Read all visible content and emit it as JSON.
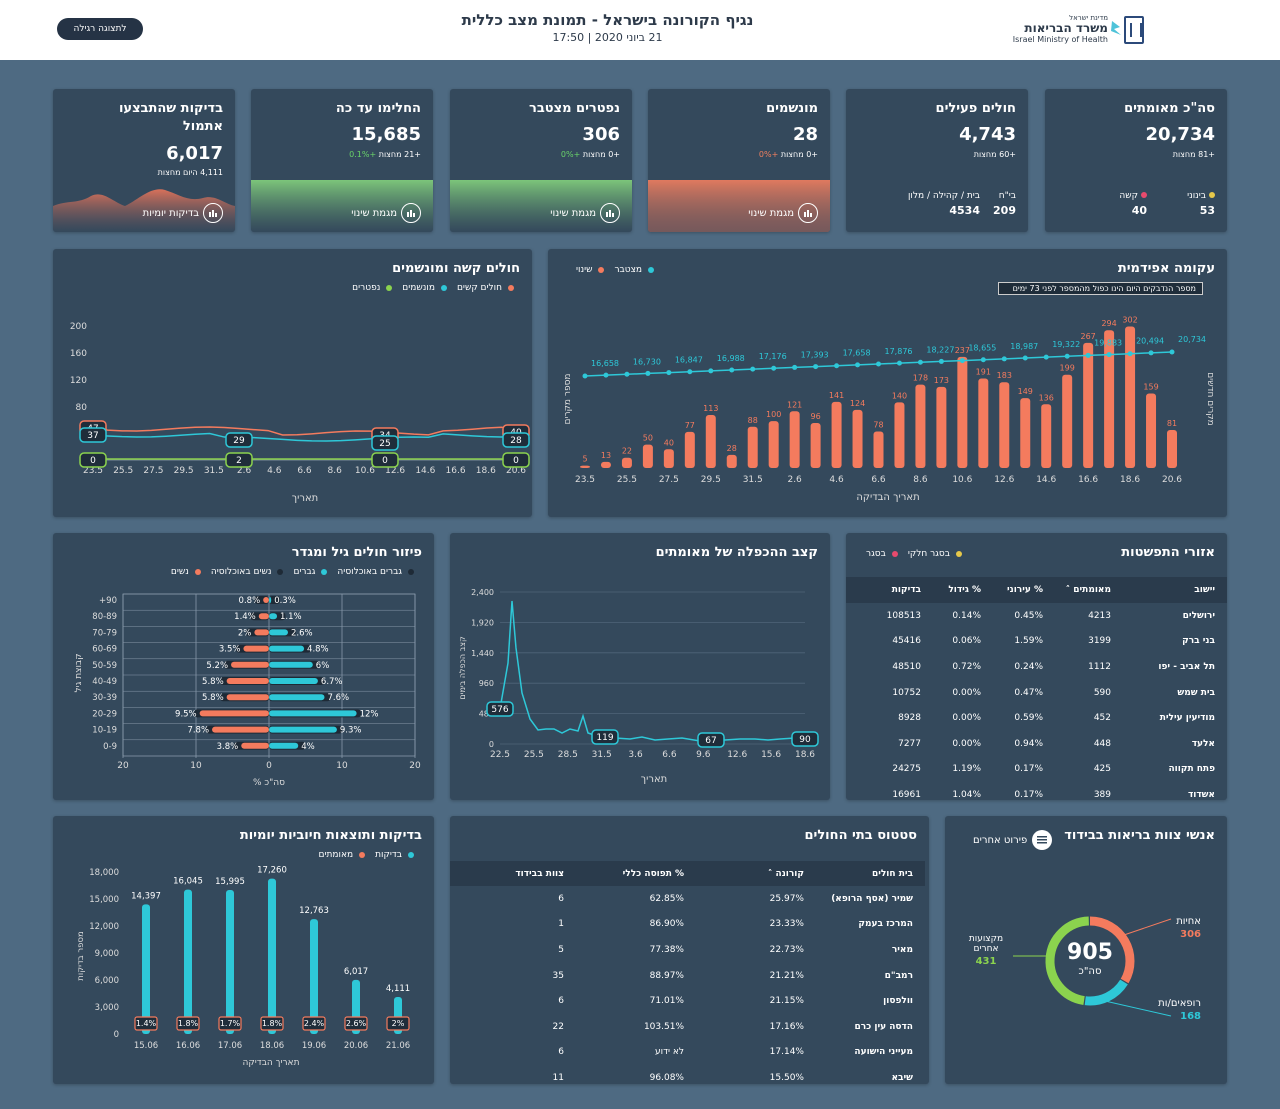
{
  "header": {
    "title": "נגיף הקורונה בישראל - תמונת מצב כללית",
    "subtitle": "21 ביוני 2020 | 17:50",
    "button": "לתצוגה רגילה",
    "logo_line1": "מדינת ישראל",
    "logo_line2": "משרד הבריאות",
    "logo_en": "Israel Ministry of Health"
  },
  "colors": {
    "orange": "#f47b5e",
    "cyan": "#2ec8d8",
    "green": "#8bd34e",
    "pink": "#e84a6d",
    "yellow": "#e6c84a",
    "card": "#34495c",
    "bg": "#4e6a82"
  },
  "kpis": {
    "confirmed": {
      "title": "סה\"כ מאומתים",
      "value": "20,734",
      "chg_label": "מחצות",
      "chg": "+81",
      "s1_label": "בינוני",
      "s1": "53",
      "s2_label": "קשה",
      "s2": "40"
    },
    "active": {
      "title": "חולים פעילים",
      "value": "4,743",
      "chg_label": "מחצות",
      "chg": "+60",
      "s1_label": "בי\"ח",
      "s1": "209",
      "s2_label": "בית / קהילה / מלון",
      "s2": "4534"
    },
    "ventilated": {
      "title": "מונשמים",
      "value": "28",
      "chg_label": "מחצות",
      "chg": "+0",
      "pct": "+0%",
      "btn": "מגמת שינוי"
    },
    "deceased": {
      "title": "נפטרים מצטבר",
      "value": "306",
      "chg_label": "מחצות",
      "chg": "+0",
      "pct": "+0%",
      "btn": "מגמת שינוי"
    },
    "recovered": {
      "title": "החלימו עד כה",
      "value": "15,685",
      "chg_label": "מחצות",
      "chg": "+21",
      "pct": "+0.1%",
      "btn": "מגמת שינוי"
    },
    "tests": {
      "title1": "בדיקות שהתבצעו",
      "title2": "אתמול",
      "value": "6,017",
      "chg_label": "היום מחצות",
      "chg": "4,111",
      "btn": "בדיקות יומיות"
    }
  },
  "epi": {
    "title": "עקומה אפידמית",
    "legend_change": "שינוי",
    "legend_cum": "מצטבר",
    "annotation": "מספר הנדבקים היום הינו כפול מהמספר לפני 73 ימים",
    "ylabel_left": "מספר מקרים",
    "ylabel_right": "מקרים חדשים",
    "xlabel": "תאריך הבדיקה",
    "chart_data": {
      "type": "bar",
      "x_ticks": [
        "23.5",
        "25.5",
        "27.5",
        "29.5",
        "31.5",
        "2.6",
        "4.6",
        "6.6",
        "8.6",
        "10.6",
        "12.6",
        "14.6",
        "16.6",
        "18.6",
        "20.6"
      ],
      "new_cases": [
        5,
        13,
        22,
        50,
        40,
        77,
        113,
        28,
        88,
        100,
        121,
        96,
        141,
        124,
        78,
        140,
        178,
        173,
        237,
        191,
        183,
        149,
        136,
        199,
        267,
        294,
        302,
        159,
        81
      ],
      "cumulative_labels": [
        "16,658",
        "16,730",
        "16,847",
        "16,988",
        "17,176",
        "17,393",
        "17,658",
        "17,876",
        "18,227",
        "18,655",
        "18,987",
        "19,322",
        "19,883",
        "20,494",
        "20,734"
      ]
    }
  },
  "severe": {
    "title": "חולים קשה ומונשמים",
    "legend": [
      "חולים קשים",
      "מונשמים",
      "נפטרים"
    ],
    "xlabel": "תאריך",
    "chart_data": {
      "type": "line",
      "y_ticks": [
        "200",
        "160",
        "120",
        "80"
      ],
      "x_ticks": [
        "23.5",
        "25.5",
        "27.5",
        "29.5",
        "31.5",
        "2.6",
        "4.6",
        "6.6",
        "8.6",
        "10.6",
        "12.6",
        "14.6",
        "16.6",
        "18.6",
        "20.6"
      ],
      "labels": {
        "severe_start": "47",
        "vent_start": "37",
        "vent_a": "29",
        "severe_mid": "34",
        "vent_mid": "25",
        "severe_end": "40",
        "vent_end": "28",
        "deceased": [
          "0",
          "2",
          "0",
          "0"
        ]
      }
    }
  },
  "cities": {
    "title": "אזורי התפשטות",
    "legend": [
      "בסגר",
      "בסגר חלקי"
    ],
    "headers": [
      "יישוב",
      "מאומתים ˄",
      "% עירוני",
      "% גידול",
      "בדיקות"
    ],
    "rows": [
      [
        "ירושלים",
        "4213",
        "0.45%",
        "0.14%",
        "108513"
      ],
      [
        "בני ברק",
        "3199",
        "1.59%",
        "0.06%",
        "45416"
      ],
      [
        "תל אביב - יפו",
        "1112",
        "0.24%",
        "0.72%",
        "48510"
      ],
      [
        "בית שמש",
        "590",
        "0.47%",
        "0.00%",
        "10752"
      ],
      [
        "מודיעין עילית",
        "452",
        "0.59%",
        "0.00%",
        "8928"
      ],
      [
        "אלעד",
        "448",
        "0.94%",
        "0.00%",
        "7277"
      ],
      [
        "פתח תקווה",
        "425",
        "0.17%",
        "1.19%",
        "24275"
      ],
      [
        "אשדוד",
        "389",
        "0.17%",
        "1.04%",
        "16961"
      ]
    ]
  },
  "doubling": {
    "title": "קצב ההכפלה של מאומתים",
    "ylabel": "קצב הכפלה בימים",
    "xlabel": "תאריך",
    "chart_data": {
      "type": "line",
      "y_ticks": [
        "2,400",
        "1,920",
        "1,440",
        "960",
        "480",
        "0"
      ],
      "x_ticks": [
        "22.5",
        "25.5",
        "28.5",
        "31.5",
        "3.6",
        "6.6",
        "9.6",
        "12.6",
        "15.6",
        "18.6"
      ],
      "labels": [
        "576",
        "119",
        "67",
        "90"
      ]
    }
  },
  "age": {
    "title": "פיזור חולים גיל ומגדר",
    "legend": [
      "גברים באוכלוסיה",
      "גברים",
      "נשים באוכלוסיה",
      "נשים"
    ],
    "ylabel": "קבוצת גיל",
    "xlabel": "% סה\"כ",
    "chart_data": {
      "type": "bar",
      "groups": [
        "+90",
        "80-89",
        "70-79",
        "60-69",
        "50-59",
        "40-49",
        "30-39",
        "20-29",
        "10-19",
        "0-9"
      ],
      "men": [
        0.3,
        1.1,
        2.6,
        4.8,
        6,
        6.7,
        7.6,
        12,
        9.3,
        4
      ],
      "women": [
        0.8,
        1.4,
        2,
        3.5,
        5.2,
        5.8,
        5.8,
        9.5,
        7.8,
        3.8
      ],
      "men_labels": [
        "0.3%",
        "1.1%",
        "2.6%",
        "4.8%",
        "6%",
        "6.7%",
        "7.6%",
        "12%",
        "9.3%",
        "4%"
      ],
      "women_labels": [
        "0.8%",
        "1.4%",
        "2%",
        "3.5%",
        "5.2%",
        "5.8%",
        "5.8%",
        "9.5%",
        "7.8%",
        "3.8%"
      ],
      "x_ticks": [
        "20",
        "10",
        "0",
        "10",
        "20"
      ]
    }
  },
  "staff": {
    "title": "אנשי צוות בריאות בבידוד",
    "toggle": "פירוט אחרים",
    "total": "905",
    "total_label": "סה\"כ",
    "nurses_label": "אחיות",
    "nurses": "306",
    "doctors_label": "רופאים/ות",
    "doctors": "168",
    "others_label1": "מקצועות",
    "others_label2": "אחרים",
    "others": "431"
  },
  "hospitals": {
    "title": "סטטוס בתי החולים",
    "headers": [
      "בית חולים",
      "קורונה ˄",
      "% תפוסה כללי",
      "צוות בבידוד"
    ],
    "rows": [
      [
        "שמיר (אסף הרופא)",
        "25.97%",
        "62.85%",
        "6"
      ],
      [
        "המרכז בעמק",
        "23.33%",
        "86.90%",
        "1"
      ],
      [
        "מאיר",
        "22.73%",
        "77.38%",
        "5"
      ],
      [
        "רמב\"ם",
        "21.21%",
        "88.97%",
        "35"
      ],
      [
        "וולפסון",
        "21.15%",
        "71.01%",
        "6"
      ],
      [
        "הדסה עין כרם",
        "17.16%",
        "103.51%",
        "22"
      ],
      [
        "מעייני הישועה",
        "17.14%",
        "לא ידוע",
        "6"
      ],
      [
        "שיבא",
        "15.50%",
        "96.08%",
        "11"
      ]
    ]
  },
  "tests_chart": {
    "title": "בדיקות ותוצאות חיוביות יומיות",
    "legend": [
      "בדיקות",
      "מאומתים"
    ],
    "ylabel": "מספר בדיקות",
    "xlabel": "תאריך הבדיקה",
    "chart_data": {
      "type": "bar",
      "y_ticks": [
        "18,000",
        "15,000",
        "12,000",
        "9,000",
        "6,000",
        "3,000",
        "0"
      ],
      "x": [
        "15.06",
        "16.06",
        "17.06",
        "18.06",
        "19.06",
        "20.06",
        "21.06"
      ],
      "tests": [
        14397,
        16045,
        15995,
        17260,
        12763,
        6017,
        4111
      ],
      "test_labels": [
        "14,397",
        "16,045",
        "15,995",
        "17,260",
        "12,763",
        "6,017",
        "4,111"
      ],
      "pos_labels": [
        "1.4%",
        "1.8%",
        "1.7%",
        "1.8%",
        "2.4%",
        "2.6%",
        "2%"
      ]
    }
  }
}
